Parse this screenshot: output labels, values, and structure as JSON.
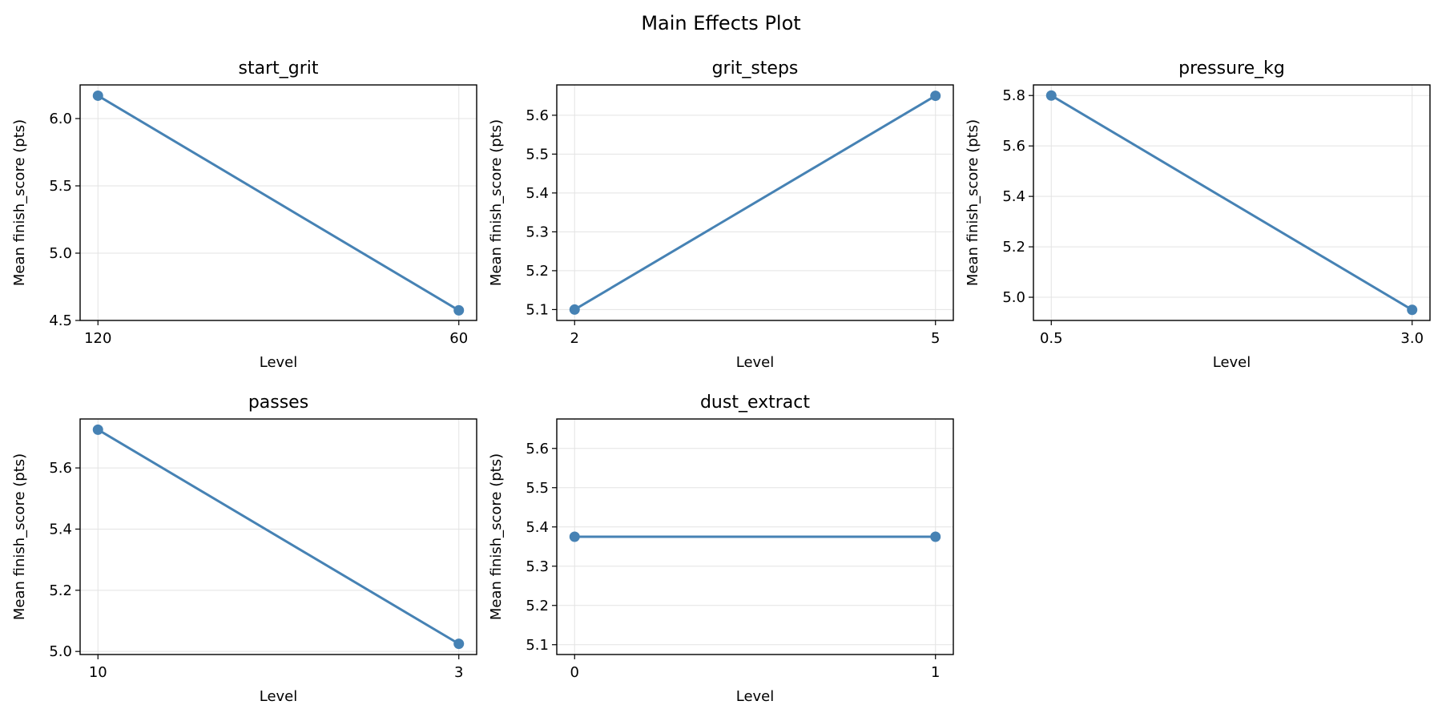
{
  "figure_title": "Main Effects Plot",
  "colors": {
    "line": "#4682b4",
    "grid": "#e3e3e3",
    "axes": "#000000"
  },
  "chart_data": [
    {
      "type": "line",
      "title": "start_grit",
      "xlabel": "Level",
      "ylabel": "Mean finish_score (pts)",
      "categories": [
        "120",
        "60"
      ],
      "values": [
        6.17,
        4.575
      ],
      "ylim": [
        4.5,
        6.25
      ],
      "yticks": [
        4.5,
        5.0,
        5.5,
        6.0
      ],
      "ytick_labels": [
        "4.5",
        "5.0",
        "5.5",
        "6.0"
      ],
      "grid": true
    },
    {
      "type": "line",
      "title": "grit_steps",
      "xlabel": "Level",
      "ylabel": "Mean finish_score (pts)",
      "categories": [
        "2",
        "5"
      ],
      "values": [
        5.1,
        5.65
      ],
      "ylim": [
        5.072,
        5.678
      ],
      "yticks": [
        5.1,
        5.2,
        5.3,
        5.4,
        5.5,
        5.6
      ],
      "ytick_labels": [
        "5.1",
        "5.2",
        "5.3",
        "5.4",
        "5.5",
        "5.6"
      ],
      "grid": true
    },
    {
      "type": "line",
      "title": "pressure_kg",
      "xlabel": "Level",
      "ylabel": "Mean finish_score (pts)",
      "categories": [
        "0.5",
        "3.0"
      ],
      "values": [
        5.8,
        4.95
      ],
      "ylim": [
        4.908,
        5.842
      ],
      "yticks": [
        5.0,
        5.2,
        5.4,
        5.6,
        5.8
      ],
      "ytick_labels": [
        "5.0",
        "5.2",
        "5.4",
        "5.6",
        "5.8"
      ],
      "grid": true
    },
    {
      "type": "line",
      "title": "passes",
      "xlabel": "Level",
      "ylabel": "Mean finish_score (pts)",
      "categories": [
        "10",
        "3"
      ],
      "values": [
        5.725,
        5.025
      ],
      "ylim": [
        4.99,
        5.76
      ],
      "yticks": [
        5.0,
        5.2,
        5.4,
        5.6
      ],
      "ytick_labels": [
        "5.0",
        "5.2",
        "5.4",
        "5.6"
      ],
      "grid": true
    },
    {
      "type": "line",
      "title": "dust_extract",
      "xlabel": "Level",
      "ylabel": "Mean finish_score (pts)",
      "categories": [
        "0",
        "1"
      ],
      "values": [
        5.375,
        5.375
      ],
      "ylim": [
        5.075,
        5.675
      ],
      "yticks": [
        5.1,
        5.2,
        5.3,
        5.4,
        5.5,
        5.6
      ],
      "ytick_labels": [
        "5.1",
        "5.2",
        "5.3",
        "5.4",
        "5.5",
        "5.6"
      ],
      "grid": true
    }
  ]
}
